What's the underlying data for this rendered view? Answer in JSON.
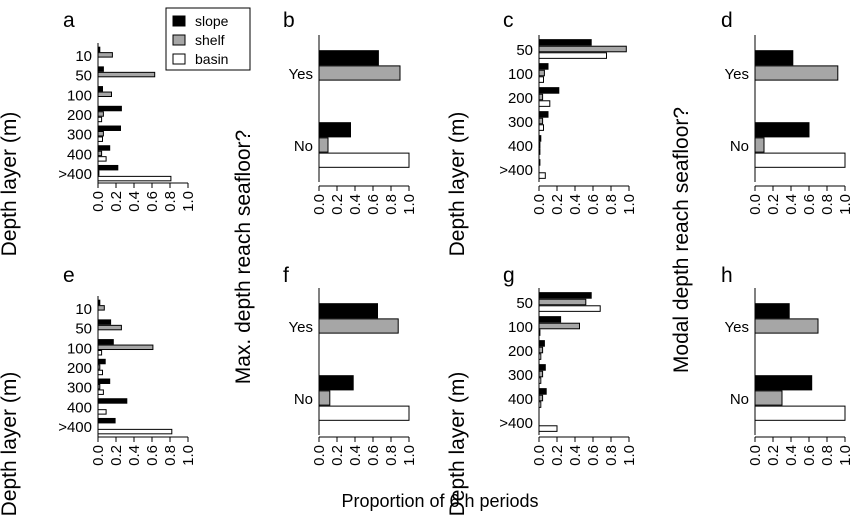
{
  "figure": {
    "common_xlabel": "Proportion of 6 h periods",
    "ylabel_depth": "Depth layer (m)",
    "ylabel_max": "Max. depth reach seafloor?",
    "ylabel_modal": "Modal depth reach seafloor?"
  },
  "legend": {
    "position": "top-left of panel b",
    "entries": [
      {
        "name": "slope",
        "color": "#000000"
      },
      {
        "name": "shelf",
        "color": "#a6a6a6"
      },
      {
        "name": "basin",
        "color": "#ffffff"
      }
    ]
  },
  "chart_data": [
    {
      "panel": "a",
      "type": "bar",
      "orientation": "horizontal",
      "categories": [
        "10",
        "50",
        "100",
        "200",
        "300",
        "400",
        ">400"
      ],
      "series": [
        {
          "name": "slope",
          "values": [
            0.02,
            0.06,
            0.05,
            0.26,
            0.25,
            0.13,
            0.22
          ]
        },
        {
          "name": "shelf",
          "values": [
            0.16,
            0.63,
            0.15,
            0.06,
            0.06,
            0.04,
            0.01
          ]
        },
        {
          "name": "basin",
          "values": [
            0.0,
            0.0,
            0.0,
            0.04,
            0.05,
            0.09,
            0.81
          ]
        }
      ],
      "xticks": [
        "0.0",
        "0.2",
        "0.4",
        "0.6",
        "0.8",
        "1.0"
      ],
      "xlim": [
        0,
        1
      ]
    },
    {
      "panel": "b",
      "type": "bar",
      "orientation": "horizontal",
      "categories": [
        "Yes",
        "No"
      ],
      "series": [
        {
          "name": "slope",
          "values": [
            0.66,
            0.35
          ]
        },
        {
          "name": "shelf",
          "values": [
            0.9,
            0.1
          ]
        },
        {
          "name": "basin",
          "values": [
            0.0,
            1.0
          ]
        }
      ],
      "xticks": [
        "0.0",
        "0.2",
        "0.4",
        "0.6",
        "0.8",
        "1.0"
      ],
      "xlim": [
        0,
        1
      ]
    },
    {
      "panel": "c",
      "type": "bar",
      "orientation": "horizontal",
      "categories": [
        "50",
        "100",
        "200",
        "300",
        "400",
        ">400"
      ],
      "series": [
        {
          "name": "slope",
          "values": [
            0.58,
            0.1,
            0.22,
            0.1,
            0.02,
            0.01
          ]
        },
        {
          "name": "shelf",
          "values": [
            0.97,
            0.06,
            0.04,
            0.04,
            0.01,
            0.0
          ]
        },
        {
          "name": "basin",
          "values": [
            0.75,
            0.05,
            0.12,
            0.05,
            0.01,
            0.07
          ]
        }
      ],
      "xticks": [
        "0.0",
        "0.2",
        "0.4",
        "0.6",
        "0.8",
        "1.0"
      ],
      "xlim": [
        0,
        1
      ]
    },
    {
      "panel": "d",
      "type": "bar",
      "orientation": "horizontal",
      "categories": [
        "Yes",
        "No"
      ],
      "series": [
        {
          "name": "slope",
          "values": [
            0.42,
            0.6
          ]
        },
        {
          "name": "shelf",
          "values": [
            0.92,
            0.1
          ]
        },
        {
          "name": "basin",
          "values": [
            0.0,
            1.0
          ]
        }
      ],
      "xticks": [
        "0.0",
        "0.2",
        "0.4",
        "0.6",
        "0.8",
        "1.0"
      ],
      "xlim": [
        0,
        1
      ]
    },
    {
      "panel": "e",
      "type": "bar",
      "orientation": "horizontal",
      "categories": [
        "10",
        "50",
        "100",
        "200",
        "300",
        "400",
        ">400"
      ],
      "series": [
        {
          "name": "slope",
          "values": [
            0.02,
            0.14,
            0.17,
            0.08,
            0.13,
            0.32,
            0.19
          ]
        },
        {
          "name": "shelf",
          "values": [
            0.07,
            0.26,
            0.61,
            0.02,
            0.02,
            0.0,
            0.0
          ]
        },
        {
          "name": "basin",
          "values": [
            0.0,
            0.0,
            0.04,
            0.05,
            0.06,
            0.09,
            0.82
          ]
        }
      ],
      "xticks": [
        "0.0",
        "0.2",
        "0.4",
        "0.6",
        "0.8",
        "1.0"
      ],
      "xlim": [
        0,
        1
      ]
    },
    {
      "panel": "f",
      "type": "bar",
      "orientation": "horizontal",
      "categories": [
        "Yes",
        "No"
      ],
      "series": [
        {
          "name": "slope",
          "values": [
            0.65,
            0.38
          ]
        },
        {
          "name": "shelf",
          "values": [
            0.88,
            0.12
          ]
        },
        {
          "name": "basin",
          "values": [
            0.0,
            1.0
          ]
        }
      ],
      "xticks": [
        "0.0",
        "0.2",
        "0.4",
        "0.6",
        "0.8",
        "1.0"
      ],
      "xlim": [
        0,
        1
      ]
    },
    {
      "panel": "g",
      "type": "bar",
      "orientation": "horizontal",
      "categories": [
        "50",
        "100",
        "200",
        "300",
        "400",
        ">400"
      ],
      "series": [
        {
          "name": "slope",
          "values": [
            0.58,
            0.24,
            0.06,
            0.07,
            0.08,
            0.0
          ]
        },
        {
          "name": "shelf",
          "values": [
            0.52,
            0.45,
            0.04,
            0.04,
            0.04,
            0.0
          ]
        },
        {
          "name": "basin",
          "values": [
            0.68,
            0.01,
            0.02,
            0.02,
            0.02,
            0.2
          ]
        }
      ],
      "xticks": [
        "0.0",
        "0.2",
        "0.4",
        "0.6",
        "0.8",
        "1.0"
      ],
      "xlim": [
        0,
        1
      ]
    },
    {
      "panel": "h",
      "type": "bar",
      "orientation": "horizontal",
      "categories": [
        "Yes",
        "No"
      ],
      "series": [
        {
          "name": "slope",
          "values": [
            0.38,
            0.63
          ]
        },
        {
          "name": "shelf",
          "values": [
            0.7,
            0.3
          ]
        },
        {
          "name": "basin",
          "values": [
            0.0,
            1.0
          ]
        }
      ],
      "xticks": [
        "0.0",
        "0.2",
        "0.4",
        "0.6",
        "0.8",
        "1.0"
      ],
      "xlim": [
        0,
        1
      ]
    }
  ]
}
